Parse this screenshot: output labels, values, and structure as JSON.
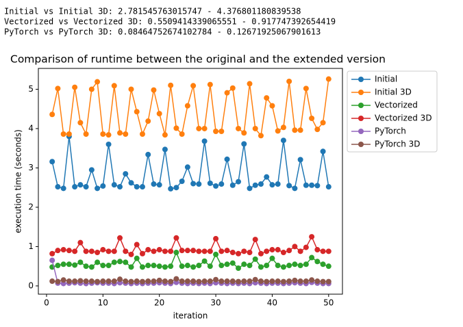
{
  "output_lines": [
    "Initial vs Initial 3D: 2.781545763015747 - 4.376801180839538",
    "Vectorized vs Vectorized 3D: 0.5509414339065551 - 0.917747392654419",
    "PyTorch vs PyTorch 3D: 0.08464752674102784 - 0.12671925067901613"
  ],
  "chart_data": {
    "type": "line",
    "title": "Comparison of runtime between the original and the extended version",
    "x_label": "iteration",
    "y_label": "execution time (seconds)",
    "x": [
      1,
      2,
      3,
      4,
      5,
      6,
      7,
      8,
      9,
      10,
      11,
      12,
      13,
      14,
      15,
      16,
      17,
      18,
      19,
      20,
      21,
      22,
      23,
      24,
      25,
      26,
      27,
      28,
      29,
      30,
      31,
      32,
      33,
      34,
      35,
      36,
      37,
      38,
      39,
      40,
      41,
      42,
      43,
      44,
      45,
      46,
      47,
      48,
      49,
      50
    ],
    "series": [
      {
        "name": "Initial",
        "color": "#1f77b4",
        "values": [
          3.16,
          2.52,
          2.48,
          3.8,
          2.52,
          2.57,
          2.52,
          2.95,
          2.48,
          2.54,
          3.6,
          2.57,
          2.52,
          2.85,
          2.62,
          2.52,
          2.52,
          3.34,
          2.59,
          2.57,
          3.47,
          2.47,
          2.5,
          2.66,
          3.02,
          2.6,
          2.59,
          3.68,
          2.61,
          2.54,
          2.59,
          3.22,
          2.56,
          2.65,
          3.61,
          2.48,
          2.56,
          2.59,
          2.77,
          2.57,
          2.59,
          3.7,
          2.55,
          2.48,
          3.21,
          2.56,
          2.56,
          2.55,
          3.42,
          2.52
        ]
      },
      {
        "name": "Initial 3D",
        "color": "#ff7f0e",
        "values": [
          4.36,
          5.02,
          3.86,
          3.86,
          5.05,
          4.15,
          3.86,
          5.0,
          5.19,
          3.86,
          3.84,
          5.09,
          3.89,
          3.86,
          5.0,
          4.43,
          3.86,
          4.19,
          4.98,
          4.38,
          3.84,
          5.1,
          4.01,
          3.86,
          4.58,
          5.09,
          4.0,
          4.0,
          5.12,
          3.93,
          3.93,
          4.91,
          5.03,
          4.0,
          3.89,
          5.14,
          4.0,
          3.82,
          4.78,
          4.58,
          3.94,
          4.03,
          5.2,
          3.96,
          3.96,
          5.02,
          4.26,
          3.98,
          4.15,
          5.26
        ]
      },
      {
        "name": "Vectorized",
        "color": "#2ca02c",
        "values": [
          0.48,
          0.52,
          0.55,
          0.55,
          0.53,
          0.6,
          0.5,
          0.48,
          0.6,
          0.52,
          0.52,
          0.6,
          0.62,
          0.6,
          0.48,
          0.7,
          0.48,
          0.52,
          0.52,
          0.5,
          0.48,
          0.5,
          0.85,
          0.5,
          0.52,
          0.48,
          0.52,
          0.63,
          0.5,
          0.8,
          0.52,
          0.55,
          0.58,
          0.45,
          0.55,
          0.52,
          0.68,
          0.48,
          0.52,
          0.7,
          0.52,
          0.48,
          0.52,
          0.55,
          0.52,
          0.55,
          0.72,
          0.62,
          0.55,
          0.5
        ]
      },
      {
        "name": "Vectorized 3D",
        "color": "#d62728",
        "values": [
          0.82,
          0.9,
          0.92,
          0.9,
          0.88,
          1.1,
          0.88,
          0.88,
          0.85,
          0.92,
          0.88,
          0.88,
          1.22,
          0.88,
          0.8,
          1.05,
          0.82,
          0.92,
          0.88,
          0.92,
          0.88,
          0.88,
          1.22,
          0.9,
          0.9,
          0.9,
          0.88,
          0.88,
          0.88,
          1.2,
          0.88,
          0.9,
          0.85,
          0.82,
          0.88,
          0.85,
          1.18,
          0.82,
          0.88,
          0.92,
          0.92,
          0.85,
          0.9,
          1.0,
          0.88,
          0.98,
          1.25,
          0.92,
          0.88,
          0.88
        ]
      },
      {
        "name": "PyTorch",
        "color": "#9467bd",
        "values": [
          0.65,
          0.07,
          0.06,
          0.07,
          0.08,
          0.07,
          0.06,
          0.07,
          0.08,
          0.07,
          0.07,
          0.06,
          0.08,
          0.07,
          0.06,
          0.07,
          0.06,
          0.07,
          0.07,
          0.08,
          0.07,
          0.06,
          0.09,
          0.07,
          0.06,
          0.07,
          0.06,
          0.07,
          0.06,
          0.08,
          0.07,
          0.06,
          0.07,
          0.06,
          0.07,
          0.06,
          0.08,
          0.07,
          0.06,
          0.07,
          0.07,
          0.06,
          0.07,
          0.08,
          0.07,
          0.06,
          0.09,
          0.07,
          0.06,
          0.06
        ]
      },
      {
        "name": "PyTorch 3D",
        "color": "#8c564b",
        "values": [
          0.12,
          0.11,
          0.15,
          0.12,
          0.12,
          0.13,
          0.12,
          0.12,
          0.11,
          0.12,
          0.12,
          0.12,
          0.17,
          0.12,
          0.11,
          0.12,
          0.11,
          0.12,
          0.12,
          0.14,
          0.12,
          0.11,
          0.18,
          0.12,
          0.12,
          0.12,
          0.11,
          0.12,
          0.12,
          0.16,
          0.12,
          0.12,
          0.12,
          0.11,
          0.12,
          0.12,
          0.16,
          0.12,
          0.11,
          0.12,
          0.12,
          0.11,
          0.12,
          0.14,
          0.12,
          0.12,
          0.15,
          0.12,
          0.11,
          0.11
        ]
      }
    ],
    "xlim": [
      -1.45,
      52.45
    ],
    "xticks": [
      0,
      10,
      20,
      30,
      40,
      50
    ],
    "ylim": [
      -0.21,
      5.53
    ],
    "yticks": [
      0,
      1,
      2,
      3,
      4,
      5
    ],
    "grid": false,
    "legend": "outside right",
    "marker": "circle"
  }
}
